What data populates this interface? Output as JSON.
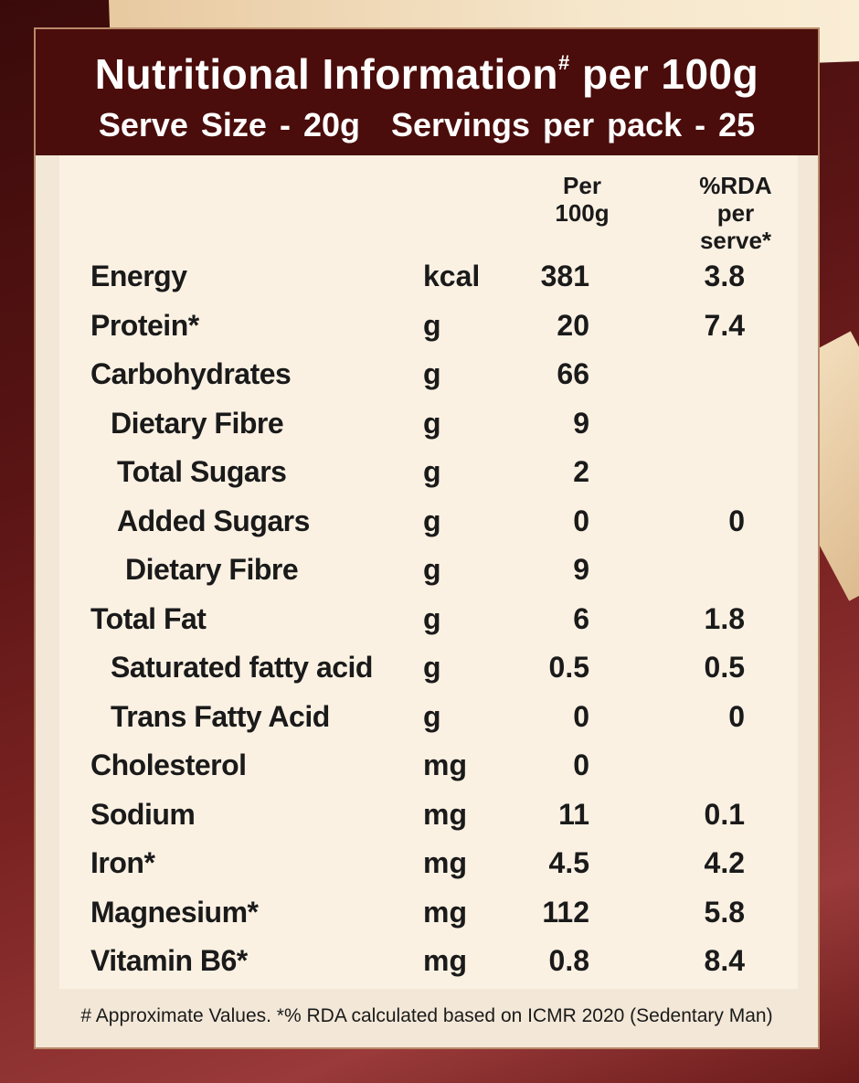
{
  "header": {
    "title": "Nutritional Information",
    "title_mark": "#",
    "title_suffix": " per 100g",
    "serve_size": "Serve Size - 20g",
    "servings": "Servings per pack - 25"
  },
  "columns": {
    "per100": "Per\n100g",
    "rda": "%RDA\nper\nserve*"
  },
  "rows": [
    {
      "name": "Energy",
      "unit": "kcal",
      "value": "381",
      "rda": "3.8",
      "indent": 0
    },
    {
      "name": "Protein*",
      "unit": "g",
      "value": "20",
      "rda": "7.4",
      "indent": 0
    },
    {
      "name": "Carbohydrates",
      "unit": "g",
      "value": "66",
      "rda": "",
      "indent": 0
    },
    {
      "name": "Dietary Fibre",
      "unit": "g",
      "value": "9",
      "rda": "",
      "indent": 1
    },
    {
      "name": "Total Sugars",
      "unit": "g",
      "value": "2",
      "rda": "",
      "indent": 2
    },
    {
      "name": "Added Sugars",
      "unit": "g",
      "value": "0",
      "rda": "0",
      "indent": 2
    },
    {
      "name": "Dietary Fibre",
      "unit": "g",
      "value": "9",
      "rda": "",
      "indent": 3
    },
    {
      "name": "Total Fat",
      "unit": "g",
      "value": "6",
      "rda": "1.8",
      "indent": 0
    },
    {
      "name": "Saturated fatty acid",
      "unit": "g",
      "value": "0.5",
      "rda": "0.5",
      "indent": 1
    },
    {
      "name": "Trans Fatty Acid",
      "unit": "g",
      "value": "0",
      "rda": "0",
      "indent": 1
    },
    {
      "name": "Cholesterol",
      "unit": "mg",
      "value": "0",
      "rda": "",
      "indent": 0
    },
    {
      "name": "Sodium",
      "unit": "mg",
      "value": "11",
      "rda": "0.1",
      "indent": 0
    },
    {
      "name": "Iron*",
      "unit": "mg",
      "value": "4.5",
      "rda": "4.2",
      "indent": 0
    },
    {
      "name": "Magnesium*",
      "unit": "mg",
      "value": "112",
      "rda": "5.8",
      "indent": 0
    },
    {
      "name": "Vitamin B6*",
      "unit": "mg",
      "value": "0.8",
      "rda": "8.4",
      "indent": 0
    }
  ],
  "footnote": "# Approximate Values.  *% RDA calculated based on ICMR 2020 (Sedentary Man)"
}
